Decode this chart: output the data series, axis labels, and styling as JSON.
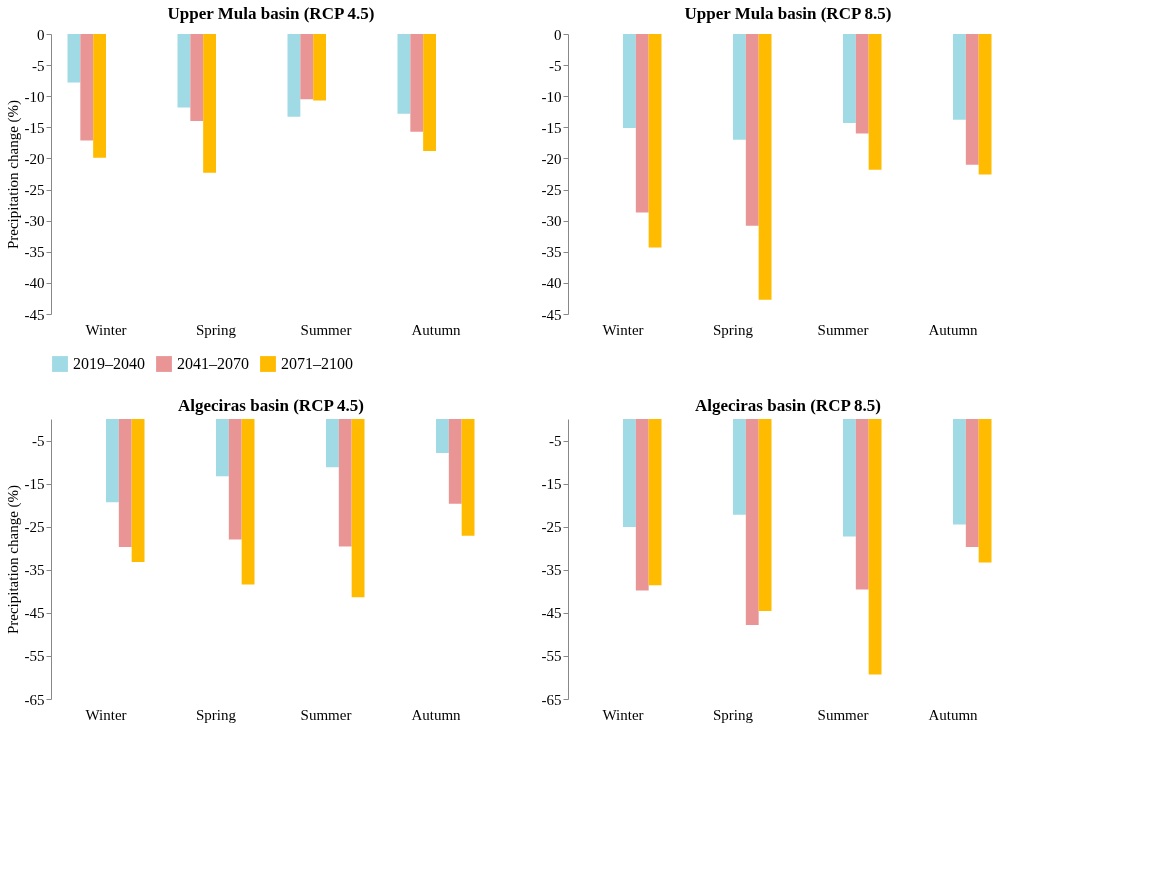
{
  "chart_data": [
    {
      "type": "bar",
      "title": "Upper Mula basin (RCP 4.5)",
      "ylabel": "Precipitation change (%)",
      "categories": [
        "Winter",
        "Spring",
        "Summer",
        "Autumn"
      ],
      "ylim": [
        -45,
        0
      ],
      "yticks": [
        0,
        -5,
        -10,
        -15,
        -20,
        -25,
        -30,
        -35,
        -40,
        -45
      ],
      "grid": false,
      "legend": "bottom",
      "series": [
        {
          "name": "2019–2040",
          "color": "#a0dae4",
          "values": [
            -7.8,
            -11.8,
            -13.3,
            -12.8
          ]
        },
        {
          "name": "2041–2070",
          "color": "#ea9595",
          "values": [
            -17.1,
            -14.0,
            -10.5,
            -15.7
          ]
        },
        {
          "name": "2071–2100",
          "color": "#ffbb00",
          "values": [
            -19.9,
            -22.3,
            -10.7,
            -18.8
          ]
        }
      ]
    },
    {
      "type": "bar",
      "title": "Upper Mula basin (RCP 8.5)",
      "categories": [
        "Winter",
        "Spring",
        "Summer",
        "Autumn"
      ],
      "ylim": [
        -45,
        0
      ],
      "yticks": [
        0,
        -5,
        -10,
        -15,
        -20,
        -25,
        -30,
        -35,
        -40,
        -45
      ],
      "grid": false,
      "series": [
        {
          "color": "#a0dae4",
          "values": [
            -15.1,
            -17.0,
            -14.3,
            -13.8
          ]
        },
        {
          "color": "#ea9595",
          "values": [
            -28.7,
            -30.8,
            -16.0,
            -21.0
          ]
        },
        {
          "color": "#ffbb00",
          "values": [
            -34.3,
            -42.7,
            -21.8,
            -22.6
          ]
        }
      ]
    },
    {
      "type": "bar",
      "title": "Algeciras basin (RCP 4.5)",
      "ylabel": "Precipitation change (%)",
      "categories": [
        "Winter",
        "Spring",
        "Summer",
        "Autumn"
      ],
      "ylim": [
        -65,
        0
      ],
      "yticks": [
        -5,
        -15,
        -25,
        -35,
        -45,
        -55,
        -65
      ],
      "grid": false,
      "series": [
        {
          "color": "#a0dae4",
          "values": [
            -19.3,
            -13.3,
            -11.2,
            -7.9
          ]
        },
        {
          "color": "#ea9595",
          "values": [
            -29.7,
            -28.0,
            -29.6,
            -19.7
          ]
        },
        {
          "color": "#ffbb00",
          "values": [
            -33.2,
            -38.4,
            -41.4,
            -27.1
          ]
        }
      ]
    },
    {
      "type": "bar",
      "title": "Algeciras basin (RCP 8.5)",
      "categories": [
        "Winter",
        "Spring",
        "Summer",
        "Autumn"
      ],
      "ylim": [
        -65,
        0
      ],
      "yticks": [
        -5,
        -15,
        -25,
        -35,
        -45,
        -55,
        -65
      ],
      "grid": false,
      "series": [
        {
          "color": "#a0dae4",
          "values": [
            -25.1,
            -22.2,
            -27.3,
            -24.5
          ]
        },
        {
          "color": "#ea9595",
          "values": [
            -39.8,
            -47.8,
            -39.6,
            -29.7
          ]
        },
        {
          "color": "#ffbb00",
          "values": [
            -38.6,
            -44.6,
            -59.3,
            -33.3
          ]
        }
      ]
    }
  ]
}
